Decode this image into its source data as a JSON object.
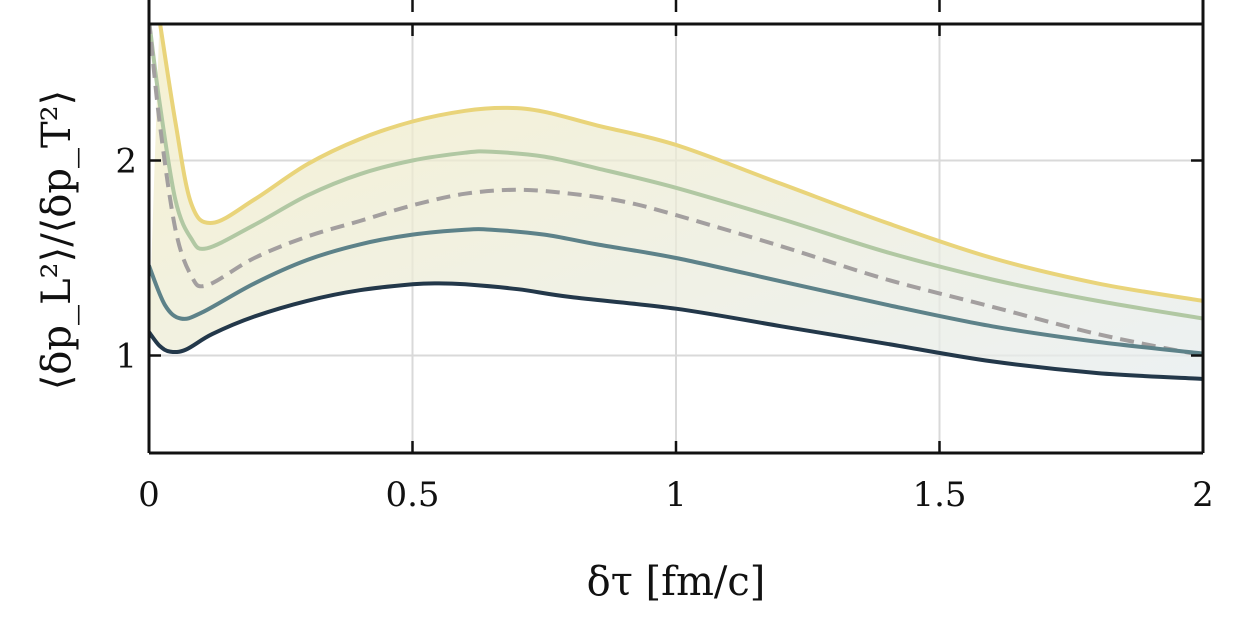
{
  "chart_data": {
    "type": "line",
    "xlabel": "δτ [fm/c]",
    "ylabel": "⟨δp_L²⟩/⟨δp_T²⟩",
    "xlim": [
      0,
      2
    ],
    "ylim": [
      0.5,
      2.7
    ],
    "x_ticks": [
      0,
      0.5,
      1,
      1.5,
      2
    ],
    "x_tick_labels": [
      "0",
      "0.5",
      "1",
      "1.5",
      "2"
    ],
    "y_ticks": [
      1,
      2
    ],
    "y_tick_labels": [
      "1",
      "2"
    ],
    "grid": true,
    "band": {
      "upper_series": "yellow",
      "lower_series": "navy",
      "gradient": [
        "#f3ecc2",
        "#e6ecee"
      ]
    },
    "series": [
      {
        "name": "yellow",
        "color": "#e9d47a",
        "dashed": false,
        "points": [
          [
            0.02,
            2.72
          ],
          [
            0.05,
            2.2
          ],
          [
            0.08,
            1.78
          ],
          [
            0.12,
            1.68
          ],
          [
            0.2,
            1.8
          ],
          [
            0.3,
            1.98
          ],
          [
            0.4,
            2.11
          ],
          [
            0.5,
            2.2
          ],
          [
            0.6,
            2.255
          ],
          [
            0.68,
            2.27
          ],
          [
            0.75,
            2.25
          ],
          [
            0.85,
            2.18
          ],
          [
            1.0,
            2.08
          ],
          [
            1.2,
            1.88
          ],
          [
            1.4,
            1.68
          ],
          [
            1.6,
            1.5
          ],
          [
            1.8,
            1.37
          ],
          [
            2.0,
            1.28
          ]
        ]
      },
      {
        "name": "sage",
        "color": "#b1c8a3",
        "dashed": false,
        "points": [
          [
            0.0,
            2.72
          ],
          [
            0.02,
            2.3
          ],
          [
            0.05,
            1.8
          ],
          [
            0.08,
            1.6
          ],
          [
            0.11,
            1.55
          ],
          [
            0.2,
            1.67
          ],
          [
            0.3,
            1.82
          ],
          [
            0.4,
            1.93
          ],
          [
            0.5,
            2.0
          ],
          [
            0.6,
            2.04
          ],
          [
            0.65,
            2.045
          ],
          [
            0.75,
            2.02
          ],
          [
            0.85,
            1.96
          ],
          [
            1.0,
            1.86
          ],
          [
            1.2,
            1.7
          ],
          [
            1.4,
            1.53
          ],
          [
            1.6,
            1.39
          ],
          [
            1.8,
            1.28
          ],
          [
            2.0,
            1.19
          ]
        ]
      },
      {
        "name": "dashed-gray",
        "color": "#a39f9f",
        "dashed": true,
        "points": [
          [
            0.0,
            2.72
          ],
          [
            0.02,
            2.2
          ],
          [
            0.05,
            1.65
          ],
          [
            0.08,
            1.41
          ],
          [
            0.11,
            1.36
          ],
          [
            0.2,
            1.5
          ],
          [
            0.3,
            1.61
          ],
          [
            0.4,
            1.69
          ],
          [
            0.5,
            1.77
          ],
          [
            0.6,
            1.83
          ],
          [
            0.7,
            1.85
          ],
          [
            0.8,
            1.83
          ],
          [
            0.9,
            1.79
          ],
          [
            1.0,
            1.72
          ],
          [
            1.2,
            1.56
          ],
          [
            1.4,
            1.39
          ],
          [
            1.6,
            1.25
          ],
          [
            1.8,
            1.11
          ],
          [
            2.0,
            1.0
          ]
        ]
      },
      {
        "name": "teal",
        "color": "#5d8289",
        "dashed": false,
        "points": [
          [
            0.0,
            1.46
          ],
          [
            0.03,
            1.26
          ],
          [
            0.06,
            1.19
          ],
          [
            0.1,
            1.22
          ],
          [
            0.2,
            1.37
          ],
          [
            0.3,
            1.49
          ],
          [
            0.4,
            1.57
          ],
          [
            0.5,
            1.62
          ],
          [
            0.6,
            1.645
          ],
          [
            0.65,
            1.645
          ],
          [
            0.75,
            1.62
          ],
          [
            0.85,
            1.57
          ],
          [
            1.0,
            1.5
          ],
          [
            1.2,
            1.38
          ],
          [
            1.4,
            1.26
          ],
          [
            1.6,
            1.15
          ],
          [
            1.8,
            1.07
          ],
          [
            2.0,
            1.01
          ]
        ]
      },
      {
        "name": "navy",
        "color": "#23384a",
        "dashed": false,
        "points": [
          [
            0.0,
            1.12
          ],
          [
            0.02,
            1.05
          ],
          [
            0.04,
            1.02
          ],
          [
            0.07,
            1.03
          ],
          [
            0.12,
            1.11
          ],
          [
            0.2,
            1.2
          ],
          [
            0.3,
            1.28
          ],
          [
            0.4,
            1.335
          ],
          [
            0.5,
            1.365
          ],
          [
            0.55,
            1.37
          ],
          [
            0.6,
            1.365
          ],
          [
            0.7,
            1.34
          ],
          [
            0.8,
            1.3
          ],
          [
            1.0,
            1.24
          ],
          [
            1.2,
            1.15
          ],
          [
            1.4,
            1.06
          ],
          [
            1.6,
            0.97
          ],
          [
            1.8,
            0.91
          ],
          [
            2.0,
            0.88
          ]
        ]
      }
    ]
  }
}
